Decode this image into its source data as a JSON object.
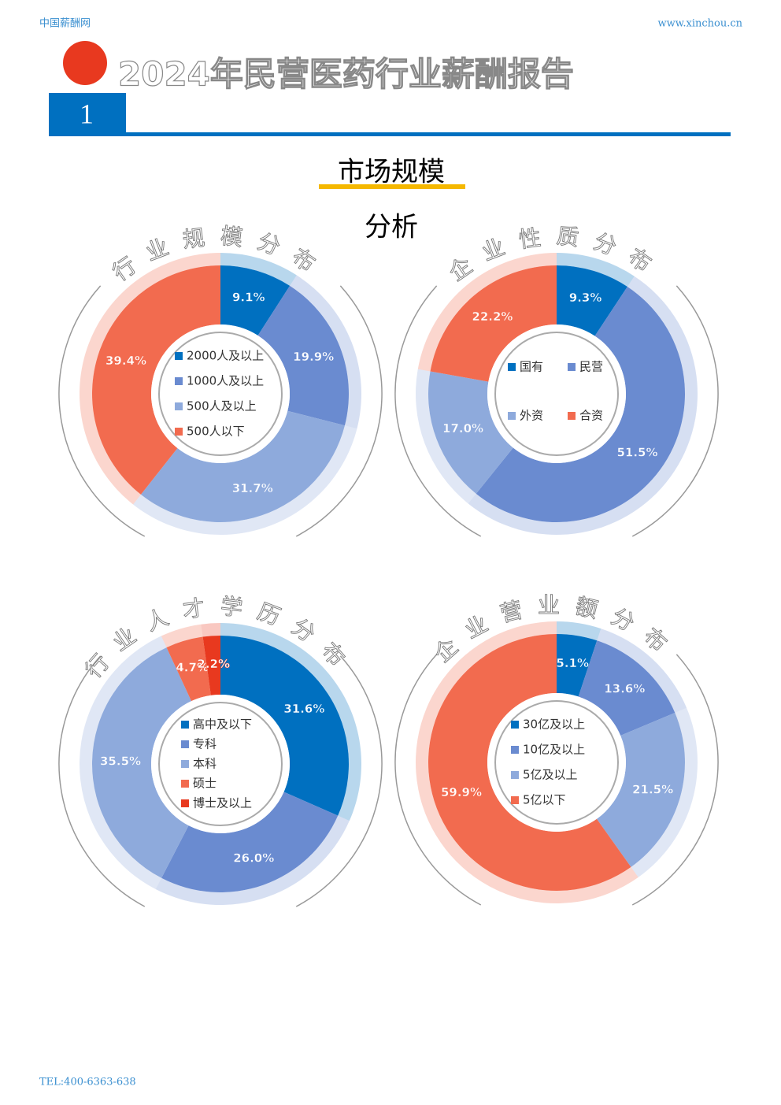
{
  "header": {
    "site": "中国薪酬网",
    "url": "www.xinchou.cn",
    "title": "2024年民营医药行业薪酬报告",
    "number": "1"
  },
  "section": {
    "title": "市场规模",
    "subtitle": "分析"
  },
  "chart_data": [
    {
      "type": "pie",
      "title": "行业规模分布",
      "categories": [
        "2000人及以上",
        "1000人及以上",
        "500人及以上",
        "500人以下"
      ],
      "values": [
        9.1,
        19.9,
        31.7,
        39.4
      ],
      "value_labels": [
        "9.1%",
        "19.9%",
        "31.7%",
        "39.4%"
      ],
      "colors": [
        "#0070c0",
        "#6a8bd0",
        "#8eaadc",
        "#f26b4f"
      ]
    },
    {
      "type": "pie",
      "title": "企业性质分布",
      "categories": [
        "国有",
        "民营",
        "外资",
        "合资"
      ],
      "values": [
        9.3,
        51.5,
        17.0,
        22.2
      ],
      "value_labels": [
        "9.3%",
        "51.5%",
        "17.0%",
        "22.2%"
      ],
      "colors": [
        "#0070c0",
        "#6a8bd0",
        "#8eaadc",
        "#f26b4f"
      ]
    },
    {
      "type": "pie",
      "title": "行业人才学历分布",
      "categories": [
        "高中及以下",
        "专科",
        "本科",
        "硕士",
        "博士及以上"
      ],
      "values": [
        31.6,
        26.0,
        35.5,
        4.7,
        2.2
      ],
      "value_labels": [
        "31.6%",
        "26.0%",
        "35.5%",
        "4.7%",
        "2.2%"
      ],
      "colors": [
        "#0070c0",
        "#6a8bd0",
        "#8eaadc",
        "#f26b4f",
        "#e8391f"
      ]
    },
    {
      "type": "pie",
      "title": "企业营业额分布",
      "categories": [
        "30亿及以上",
        "10亿及以上",
        "5亿及以上",
        "5亿以下"
      ],
      "values": [
        5.1,
        13.6,
        21.5,
        59.9
      ],
      "value_labels": [
        "5.1%",
        "13.6%",
        "21.5%",
        "59.9%"
      ],
      "colors": [
        "#0070c0",
        "#6a8bd0",
        "#8eaadc",
        "#f26b4f"
      ]
    }
  ],
  "footer": {
    "tel": "TEL:400-6363-638"
  }
}
